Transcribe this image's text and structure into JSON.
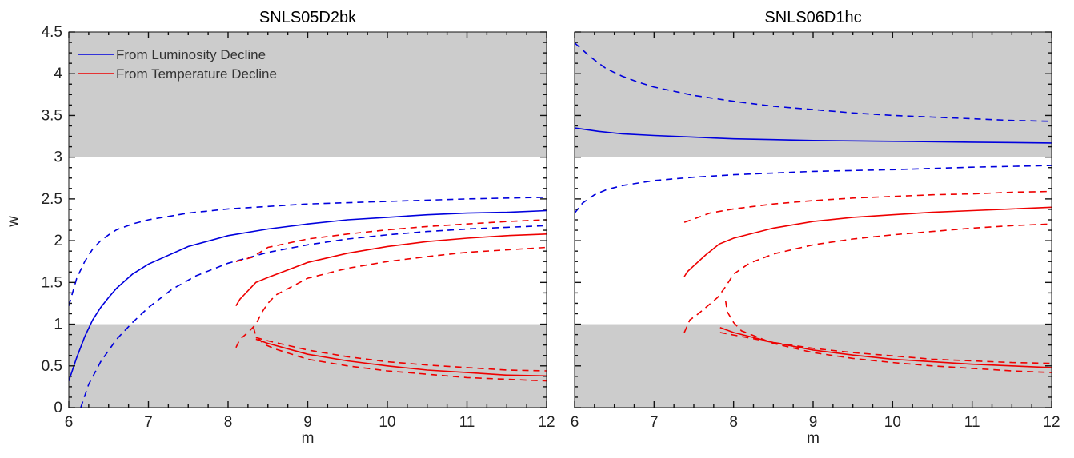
{
  "figure": {
    "ylabel": "w",
    "legend": {
      "placement": "top-left",
      "entries": [
        {
          "label": "From Luminosity Decline",
          "color": "#0000dd"
        },
        {
          "label": "From Temperature Decline",
          "color": "#ee0000"
        }
      ]
    }
  },
  "chart_data": [
    {
      "type": "line",
      "title": "SNLS05D2bk",
      "xlabel": "m",
      "ylabel": "w",
      "xlim": [
        6,
        12
      ],
      "ylim": [
        0,
        4.5
      ],
      "xticks": [
        "6",
        "7",
        "8",
        "9",
        "10",
        "11",
        "12"
      ],
      "yticks": [
        "0",
        "0.5",
        "1",
        "1.5",
        "2",
        "2.5",
        "3",
        "3.5",
        "4",
        "4.5"
      ],
      "shaded_bands": [
        [
          0,
          1
        ],
        [
          3,
          4.5
        ]
      ],
      "band_color": "#cccccc",
      "grid": false,
      "series": [
        {
          "color": "#0000dd",
          "style": "solid",
          "points": [
            [
              6.0,
              0.32
            ],
            [
              6.1,
              0.6
            ],
            [
              6.2,
              0.85
            ],
            [
              6.3,
              1.05
            ],
            [
              6.4,
              1.2
            ],
            [
              6.5,
              1.32
            ],
            [
              6.6,
              1.43
            ],
            [
              6.8,
              1.6
            ],
            [
              7.0,
              1.72
            ],
            [
              7.5,
              1.93
            ],
            [
              8.0,
              2.06
            ],
            [
              8.5,
              2.14
            ],
            [
              9.0,
              2.2
            ],
            [
              9.5,
              2.25
            ],
            [
              10.0,
              2.28
            ],
            [
              10.5,
              2.31
            ],
            [
              11.0,
              2.33
            ],
            [
              11.5,
              2.34
            ],
            [
              12.0,
              2.36
            ]
          ]
        },
        {
          "color": "#0000dd",
          "style": "dashed",
          "points": [
            [
              6.0,
              1.22
            ],
            [
              6.1,
              1.55
            ],
            [
              6.2,
              1.75
            ],
            [
              6.3,
              1.9
            ],
            [
              6.4,
              2.0
            ],
            [
              6.5,
              2.07
            ],
            [
              6.6,
              2.13
            ],
            [
              6.8,
              2.2
            ],
            [
              7.0,
              2.25
            ],
            [
              7.5,
              2.33
            ],
            [
              8.0,
              2.38
            ],
            [
              8.5,
              2.41
            ],
            [
              9.0,
              2.44
            ],
            [
              10.0,
              2.47
            ],
            [
              11.0,
              2.5
            ],
            [
              12.0,
              2.52
            ]
          ]
        },
        {
          "color": "#0000dd",
          "style": "dashed",
          "points": [
            [
              6.15,
              0.0
            ],
            [
              6.25,
              0.28
            ],
            [
              6.4,
              0.55
            ],
            [
              6.6,
              0.82
            ],
            [
              6.8,
              1.02
            ],
            [
              7.0,
              1.2
            ],
            [
              7.3,
              1.42
            ],
            [
              7.6,
              1.58
            ],
            [
              8.0,
              1.73
            ],
            [
              8.5,
              1.86
            ],
            [
              9.0,
              1.95
            ],
            [
              9.5,
              2.02
            ],
            [
              10.0,
              2.07
            ],
            [
              10.5,
              2.11
            ],
            [
              11.0,
              2.14
            ],
            [
              11.5,
              2.16
            ],
            [
              12.0,
              2.18
            ]
          ]
        },
        {
          "color": "#ee0000",
          "style": "solid",
          "points": [
            [
              8.1,
              1.22
            ],
            [
              8.15,
              1.3
            ],
            [
              8.2,
              1.35
            ],
            [
              8.28,
              1.43
            ],
            [
              8.35,
              1.5
            ],
            [
              8.5,
              1.56
            ],
            [
              9.0,
              1.74
            ],
            [
              9.5,
              1.85
            ],
            [
              10.0,
              1.93
            ],
            [
              10.5,
              1.99
            ],
            [
              11.0,
              2.03
            ],
            [
              11.5,
              2.06
            ],
            [
              12.0,
              2.08
            ]
          ]
        },
        {
          "color": "#ee0000",
          "style": "dashed",
          "points": [
            [
              8.1,
              1.75
            ],
            [
              8.3,
              1.8
            ],
            [
              8.5,
              1.92
            ],
            [
              9.0,
              2.02
            ],
            [
              9.5,
              2.08
            ],
            [
              10.0,
              2.13
            ],
            [
              10.5,
              2.17
            ],
            [
              11.0,
              2.2
            ],
            [
              11.5,
              2.23
            ],
            [
              12.0,
              2.25
            ]
          ]
        },
        {
          "color": "#ee0000",
          "style": "dashed",
          "points": [
            [
              8.1,
              0.72
            ],
            [
              8.15,
              0.82
            ],
            [
              8.25,
              0.9
            ],
            [
              8.35,
              1.0
            ],
            [
              8.43,
              1.15
            ],
            [
              8.5,
              1.25
            ],
            [
              8.6,
              1.35
            ],
            [
              9.0,
              1.55
            ],
            [
              9.5,
              1.67
            ],
            [
              10.0,
              1.75
            ],
            [
              10.5,
              1.81
            ],
            [
              11.0,
              1.86
            ],
            [
              11.5,
              1.89
            ],
            [
              12.0,
              1.92
            ]
          ]
        },
        {
          "color": "#ee0000",
          "style": "solid",
          "points": [
            [
              8.35,
              0.82
            ],
            [
              8.5,
              0.77
            ],
            [
              9.0,
              0.64
            ],
            [
              9.5,
              0.56
            ],
            [
              10.0,
              0.5
            ],
            [
              10.5,
              0.45
            ],
            [
              11.0,
              0.42
            ],
            [
              11.5,
              0.39
            ],
            [
              12.0,
              0.38
            ]
          ]
        },
        {
          "color": "#ee0000",
          "style": "dashed",
          "points": [
            [
              8.35,
              0.84
            ],
            [
              8.5,
              0.8
            ],
            [
              9.0,
              0.69
            ],
            [
              9.5,
              0.61
            ],
            [
              10.0,
              0.55
            ],
            [
              10.5,
              0.51
            ],
            [
              11.0,
              0.48
            ],
            [
              11.5,
              0.45
            ],
            [
              12.0,
              0.44
            ]
          ]
        },
        {
          "color": "#ee0000",
          "style": "dashed",
          "points": [
            [
              8.32,
              0.96
            ],
            [
              8.35,
              0.86
            ],
            [
              8.45,
              0.76
            ],
            [
              8.6,
              0.7
            ],
            [
              9.0,
              0.58
            ],
            [
              9.5,
              0.5
            ],
            [
              10.0,
              0.44
            ],
            [
              10.5,
              0.4
            ],
            [
              11.0,
              0.36
            ],
            [
              11.5,
              0.34
            ],
            [
              12.0,
              0.32
            ]
          ]
        }
      ]
    },
    {
      "type": "line",
      "title": "SNLS06D1hc",
      "xlabel": "m",
      "xlim": [
        6,
        12
      ],
      "ylim": [
        0,
        4.5
      ],
      "xticks": [
        "6",
        "7",
        "8",
        "9",
        "10",
        "11",
        "12"
      ],
      "yticks": [],
      "shaded_bands": [
        [
          0,
          1
        ],
        [
          3,
          4.5
        ]
      ],
      "band_color": "#cccccc",
      "grid": false,
      "series": [
        {
          "color": "#0000dd",
          "style": "solid",
          "points": [
            [
              6.0,
              3.35
            ],
            [
              6.3,
              3.31
            ],
            [
              6.6,
              3.28
            ],
            [
              7.0,
              3.26
            ],
            [
              7.5,
              3.24
            ],
            [
              8.0,
              3.22
            ],
            [
              8.5,
              3.21
            ],
            [
              9.0,
              3.2
            ],
            [
              10.0,
              3.19
            ],
            [
              11.0,
              3.18
            ],
            [
              12.0,
              3.17
            ]
          ]
        },
        {
          "color": "#0000dd",
          "style": "dashed",
          "points": [
            [
              6.0,
              4.37
            ],
            [
              6.2,
              4.2
            ],
            [
              6.4,
              4.06
            ],
            [
              6.6,
              3.97
            ],
            [
              6.8,
              3.9
            ],
            [
              7.0,
              3.84
            ],
            [
              7.5,
              3.74
            ],
            [
              8.0,
              3.67
            ],
            [
              8.5,
              3.61
            ],
            [
              9.0,
              3.57
            ],
            [
              9.5,
              3.53
            ],
            [
              10.0,
              3.5
            ],
            [
              10.5,
              3.48
            ],
            [
              11.0,
              3.46
            ],
            [
              11.5,
              3.44
            ],
            [
              12.0,
              3.43
            ]
          ]
        },
        {
          "color": "#0000dd",
          "style": "dashed",
          "points": [
            [
              6.0,
              2.33
            ],
            [
              6.1,
              2.45
            ],
            [
              6.25,
              2.55
            ],
            [
              6.4,
              2.61
            ],
            [
              6.6,
              2.66
            ],
            [
              7.0,
              2.72
            ],
            [
              7.5,
              2.76
            ],
            [
              8.0,
              2.79
            ],
            [
              9.0,
              2.83
            ],
            [
              10.0,
              2.85
            ],
            [
              11.0,
              2.88
            ],
            [
              12.0,
              2.9
            ]
          ]
        },
        {
          "color": "#ee0000",
          "style": "solid",
          "points": [
            [
              7.38,
              1.57
            ],
            [
              7.42,
              1.63
            ],
            [
              7.5,
              1.7
            ],
            [
              7.65,
              1.83
            ],
            [
              7.82,
              1.96
            ],
            [
              8.0,
              2.03
            ],
            [
              8.5,
              2.15
            ],
            [
              9.0,
              2.23
            ],
            [
              9.5,
              2.28
            ],
            [
              10.0,
              2.31
            ],
            [
              10.5,
              2.34
            ],
            [
              11.0,
              2.36
            ],
            [
              11.5,
              2.38
            ],
            [
              12.0,
              2.4
            ]
          ]
        },
        {
          "color": "#ee0000",
          "style": "dashed",
          "points": [
            [
              7.38,
              2.22
            ],
            [
              7.5,
              2.26
            ],
            [
              7.7,
              2.33
            ],
            [
              8.0,
              2.38
            ],
            [
              8.5,
              2.44
            ],
            [
              9.0,
              2.48
            ],
            [
              9.5,
              2.51
            ],
            [
              10.0,
              2.53
            ],
            [
              10.5,
              2.55
            ],
            [
              11.0,
              2.56
            ],
            [
              11.5,
              2.58
            ],
            [
              12.0,
              2.59
            ]
          ]
        },
        {
          "color": "#ee0000",
          "style": "dashed",
          "points": [
            [
              7.38,
              0.9
            ],
            [
              7.45,
              1.05
            ],
            [
              7.55,
              1.12
            ],
            [
              7.65,
              1.2
            ],
            [
              7.8,
              1.32
            ],
            [
              7.9,
              1.45
            ],
            [
              8.0,
              1.6
            ],
            [
              8.2,
              1.73
            ],
            [
              8.5,
              1.84
            ],
            [
              9.0,
              1.95
            ],
            [
              9.5,
              2.02
            ],
            [
              10.0,
              2.07
            ],
            [
              10.5,
              2.11
            ],
            [
              11.0,
              2.15
            ],
            [
              11.5,
              2.18
            ],
            [
              12.0,
              2.2
            ]
          ]
        },
        {
          "color": "#ee0000",
          "style": "solid",
          "points": [
            [
              7.83,
              0.96
            ],
            [
              8.0,
              0.9
            ],
            [
              8.5,
              0.78
            ],
            [
              9.0,
              0.69
            ],
            [
              9.5,
              0.63
            ],
            [
              10.0,
              0.58
            ],
            [
              10.5,
              0.55
            ],
            [
              11.0,
              0.52
            ],
            [
              11.5,
              0.5
            ],
            [
              12.0,
              0.48
            ]
          ]
        },
        {
          "color": "#ee0000",
          "style": "dashed",
          "points": [
            [
              7.83,
              0.9
            ],
            [
              8.0,
              0.87
            ],
            [
              8.5,
              0.78
            ],
            [
              9.0,
              0.71
            ],
            [
              9.5,
              0.66
            ],
            [
              10.0,
              0.62
            ],
            [
              10.5,
              0.58
            ],
            [
              11.0,
              0.56
            ],
            [
              11.5,
              0.54
            ],
            [
              12.0,
              0.53
            ]
          ]
        },
        {
          "color": "#ee0000",
          "style": "dashed",
          "points": [
            [
              7.9,
              1.28
            ],
            [
              7.92,
              1.15
            ],
            [
              8.0,
              1.02
            ],
            [
              8.1,
              0.92
            ],
            [
              8.5,
              0.77
            ],
            [
              9.0,
              0.66
            ],
            [
              9.5,
              0.59
            ],
            [
              10.0,
              0.54
            ],
            [
              10.5,
              0.5
            ],
            [
              11.0,
              0.47
            ],
            [
              11.5,
              0.44
            ],
            [
              12.0,
              0.42
            ]
          ]
        }
      ]
    }
  ]
}
